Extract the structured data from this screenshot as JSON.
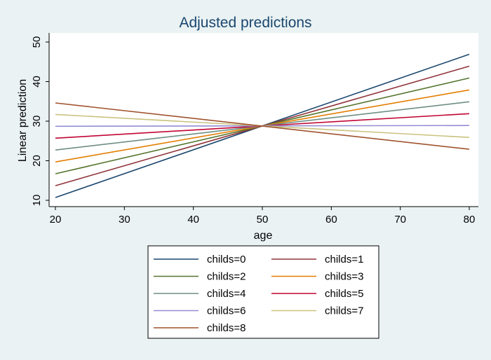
{
  "chart_data": {
    "type": "line",
    "title": "Adjusted predictions",
    "xlabel": "age",
    "ylabel": "Linear prediction",
    "xlim": [
      20,
      80
    ],
    "ylim": [
      10,
      50
    ],
    "xticks": [
      20,
      30,
      40,
      50,
      60,
      70,
      80
    ],
    "yticks": [
      10,
      20,
      30,
      40,
      50
    ],
    "grid": false,
    "legend_position": "bottom",
    "legend_columns": 2,
    "x": [
      20,
      80
    ],
    "series": [
      {
        "name": "childs=0",
        "values": [
          10.7,
          46.9
        ],
        "color": "#1a476f"
      },
      {
        "name": "childs=1",
        "values": [
          13.7,
          43.9
        ],
        "color": "#90353b"
      },
      {
        "name": "childs=2",
        "values": [
          16.7,
          40.9
        ],
        "color": "#55752f"
      },
      {
        "name": "childs=3",
        "values": [
          19.7,
          37.9
        ],
        "color": "#e37e00"
      },
      {
        "name": "childs=4",
        "values": [
          22.7,
          34.9
        ],
        "color": "#6e8e84"
      },
      {
        "name": "childs=5",
        "values": [
          25.7,
          31.9
        ],
        "color": "#c10534"
      },
      {
        "name": "childs=6",
        "values": [
          28.7,
          28.9
        ],
        "color": "#938dd2"
      },
      {
        "name": "childs=7",
        "values": [
          31.7,
          25.9
        ],
        "color": "#cac27e"
      },
      {
        "name": "childs=8",
        "values": [
          34.6,
          22.9
        ],
        "color": "#a0522d"
      }
    ]
  },
  "colors": {
    "background": "#eaf2f3",
    "plot_background": "#ffffff",
    "title": "#1a476f",
    "axis": "#000000"
  }
}
